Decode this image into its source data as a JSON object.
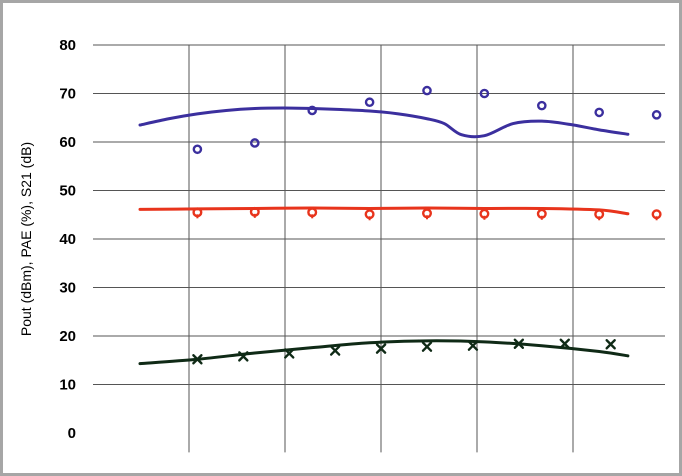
{
  "chart_data": {
    "type": "line",
    "title": "",
    "xlabel": "",
    "ylabel": "Pout (dBm), PAE (%), S21 (dB)",
    "ylim": [
      0,
      80
    ],
    "y_ticks": [
      "0",
      "10",
      "20",
      "30",
      "40",
      "50",
      "60",
      "70",
      "80"
    ],
    "x_gridlines": 5,
    "grid": true,
    "colors": {
      "blue": "#3b2f9e",
      "red": "#e8341c",
      "black": "#0f2a16",
      "grid": "#555555",
      "frame": "#a6a6a6"
    },
    "series": [
      {
        "kind": "line",
        "color": "#3b2f9e",
        "x": [
          0,
          0.1,
          0.2,
          0.3,
          0.4,
          0.5,
          0.6,
          0.7,
          0.8,
          0.9,
          1.0,
          1.06,
          1.12,
          1.2,
          1.3,
          1.4,
          1.5,
          1.6,
          1.7
        ],
        "y": [
          63.5,
          64.8,
          65.8,
          66.5,
          66.9,
          67.0,
          66.9,
          66.7,
          66.4,
          65.8,
          64.8,
          63.8,
          61.5,
          61.3,
          63.8,
          64.3,
          63.6,
          62.5,
          61.6
        ]
      },
      {
        "kind": "markers",
        "marker": "circle",
        "color": "#3b2f9e",
        "x": [
          0.2,
          0.4,
          0.6,
          0.8,
          1.0,
          1.2,
          1.4,
          1.6
        ],
        "y": [
          58.5,
          59.8,
          66.5,
          68.2,
          70.6,
          70.0,
          67.5,
          66.1
        ],
        "x_extra": [
          1.8
        ],
        "y_extra": [
          65.6
        ]
      },
      {
        "kind": "line",
        "color": "#e8341c",
        "x": [
          0,
          0.2,
          0.4,
          0.6,
          0.8,
          1.0,
          1.2,
          1.4,
          1.6,
          1.7
        ],
        "y": [
          46.1,
          46.2,
          46.3,
          46.4,
          46.3,
          46.4,
          46.3,
          46.3,
          46.0,
          45.2
        ]
      },
      {
        "kind": "markers",
        "marker": "diamond-circle",
        "color": "#e8341c",
        "x": [
          0.2,
          0.4,
          0.6,
          0.8,
          1.0,
          1.2,
          1.4,
          1.6,
          1.8
        ],
        "y": [
          45.5,
          45.6,
          45.5,
          45.1,
          45.3,
          45.2,
          45.2,
          45.1,
          45.1
        ]
      },
      {
        "kind": "line",
        "color": "#0f2a16",
        "x": [
          0,
          0.2,
          0.4,
          0.6,
          0.8,
          1.0,
          1.2,
          1.4,
          1.6,
          1.7
        ],
        "y": [
          14.3,
          15.2,
          16.5,
          17.6,
          18.6,
          19.0,
          18.8,
          18.0,
          16.8,
          15.9
        ]
      },
      {
        "kind": "markers",
        "marker": "x",
        "color": "#0f2a16",
        "x": [
          0.2,
          0.36,
          0.52,
          0.68,
          0.84,
          1.0,
          1.16,
          1.32,
          1.48,
          1.64
        ],
        "y": [
          15.2,
          15.8,
          16.4,
          17.0,
          17.4,
          17.8,
          18.0,
          18.4,
          18.4,
          18.3
        ]
      }
    ]
  }
}
